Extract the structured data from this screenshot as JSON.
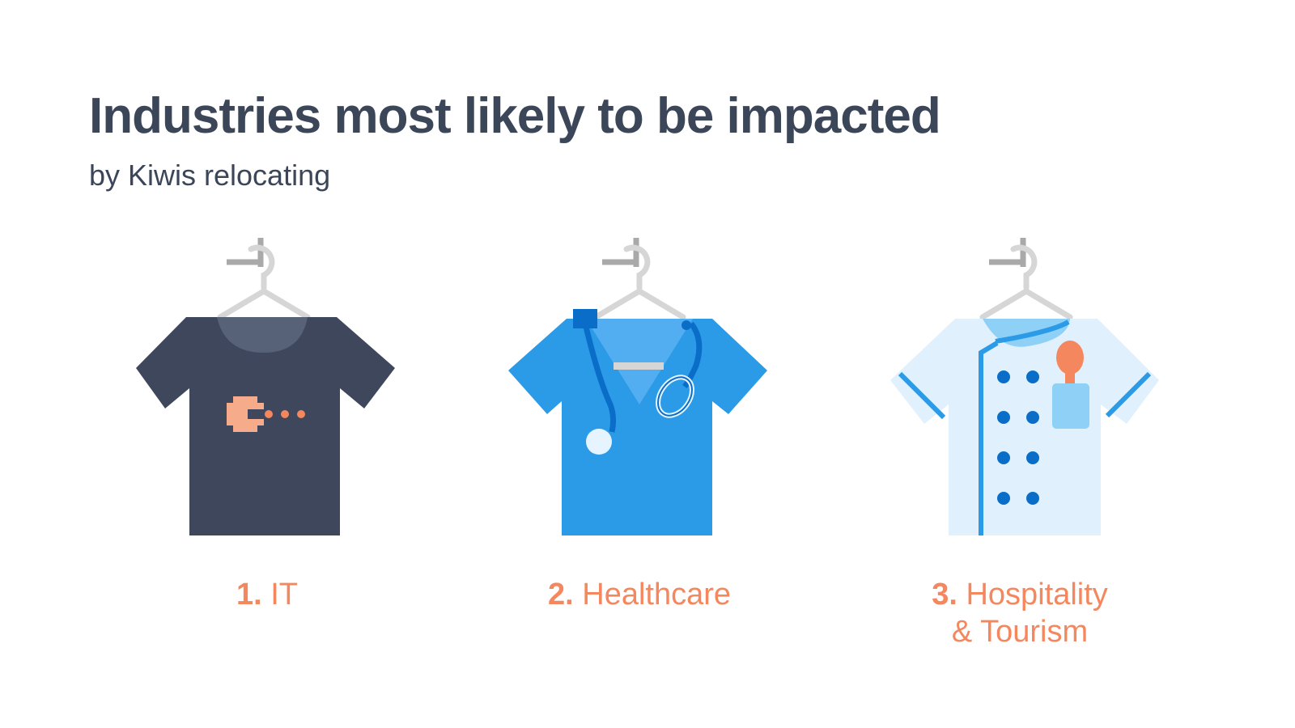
{
  "header": {
    "title": "Industries most likely to be impacted",
    "subtitle": "by Kiwis relocating"
  },
  "industries": [
    {
      "rank": "1.",
      "name": "IT",
      "icon": "tshirt-icon"
    },
    {
      "rank": "2.",
      "name": "Healthcare",
      "icon": "scrubs-icon"
    },
    {
      "rank": "3.",
      "name": "Hospitality",
      "name_line2": "& Tourism",
      "icon": "chef-jacket-icon"
    }
  ],
  "colors": {
    "title": "#3c4659",
    "accent": "#f4875e",
    "tshirt": "#3f475c",
    "scrubs": "#2b9be8",
    "chef_jacket": "#e0f1fd",
    "hanger": "#d6d6d6"
  }
}
